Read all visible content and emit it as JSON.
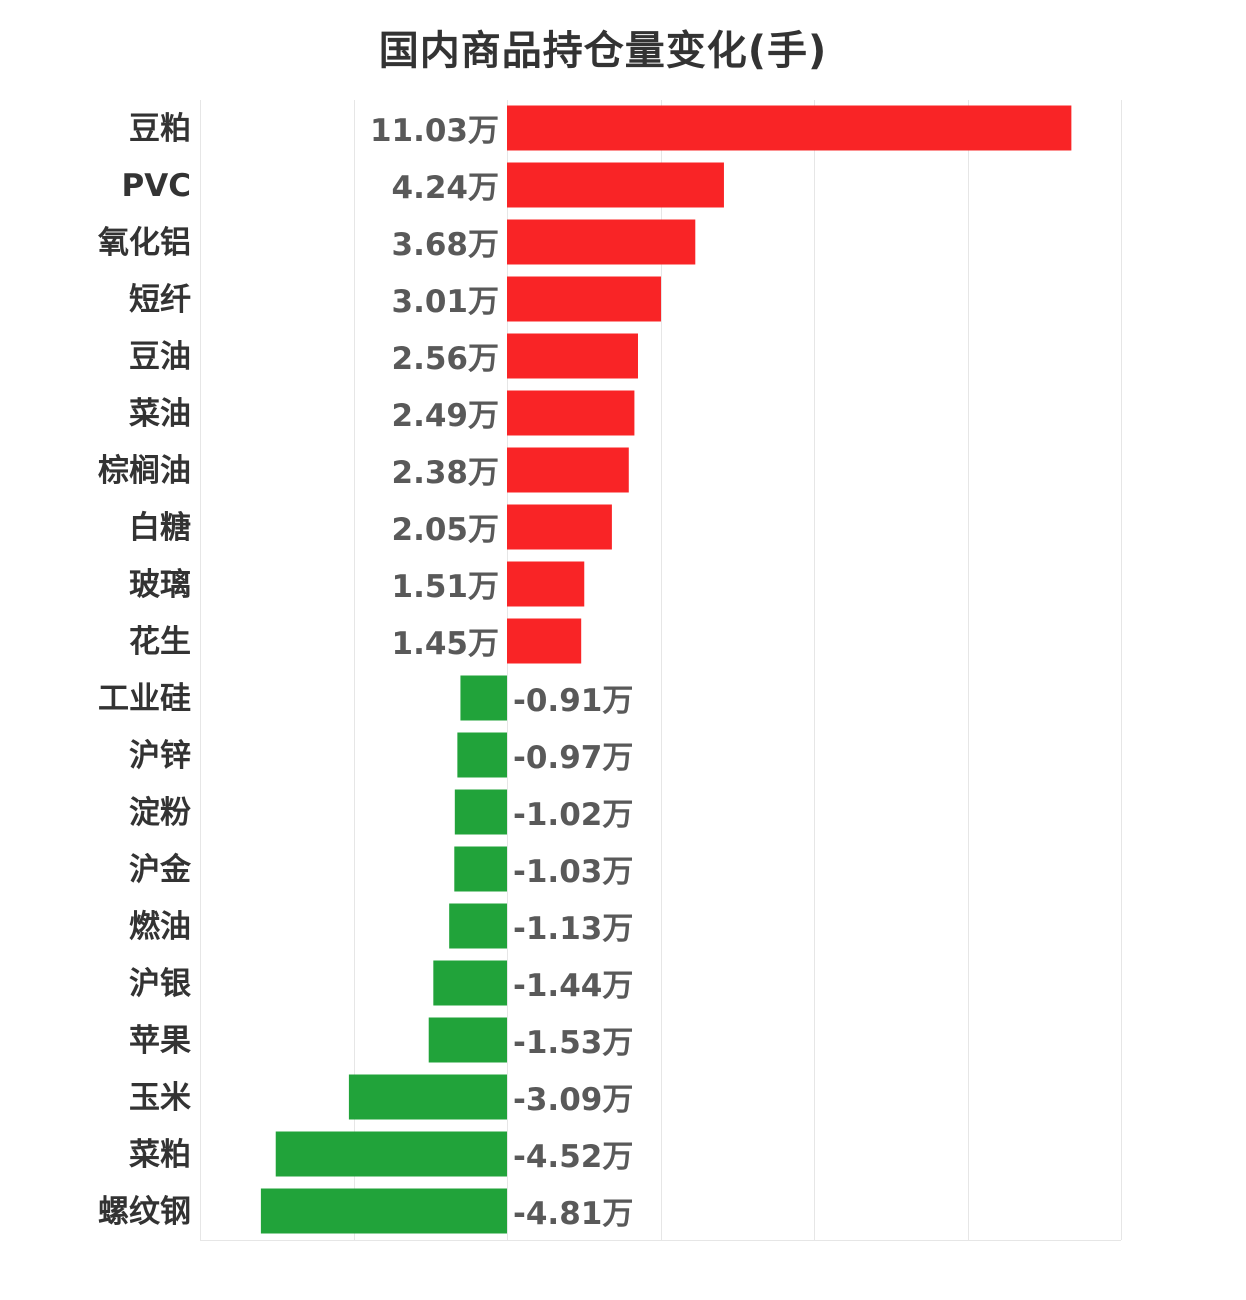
{
  "chart_data": {
    "type": "bar",
    "orientation": "horizontal",
    "title": "国内商品持仓量变化(手)",
    "unit_suffix": "万",
    "categories": [
      "豆粕",
      "PVC",
      "氧化铝",
      "短纤",
      "豆油",
      "菜油",
      "棕榈油",
      "白糖",
      "玻璃",
      "花生",
      "工业硅",
      "沪锌",
      "淀粉",
      "沪金",
      "燃油",
      "沪银",
      "苹果",
      "玉米",
      "菜粕",
      "螺纹钢"
    ],
    "values": [
      11.03,
      4.24,
      3.68,
      3.01,
      2.56,
      2.49,
      2.38,
      2.05,
      1.51,
      1.45,
      -0.91,
      -0.97,
      -1.02,
      -1.03,
      -1.13,
      -1.44,
      -1.53,
      -3.09,
      -4.52,
      -4.81
    ],
    "value_labels": [
      "11.03万",
      "4.24万",
      "3.68万",
      "3.01万",
      "2.56万",
      "2.49万",
      "2.38万",
      "2.05万",
      "1.51万",
      "1.45万",
      "-0.91万",
      "-0.97万",
      "-1.02万",
      "-1.03万",
      "-1.13万",
      "-1.44万",
      "-1.53万",
      "-3.09万",
      "-4.52万",
      "-4.81万"
    ],
    "xlim": [
      -6,
      12
    ],
    "gridlines_at": [
      -6,
      -3,
      0,
      3,
      6,
      9,
      12
    ],
    "tick_labels_visible": false,
    "grid": true,
    "legend": "none",
    "colors": {
      "positive": "#f92426",
      "negative": "#21a33a",
      "gridline": "#e6e6e6",
      "category_text": "#333333",
      "value_text": "#595959"
    }
  }
}
